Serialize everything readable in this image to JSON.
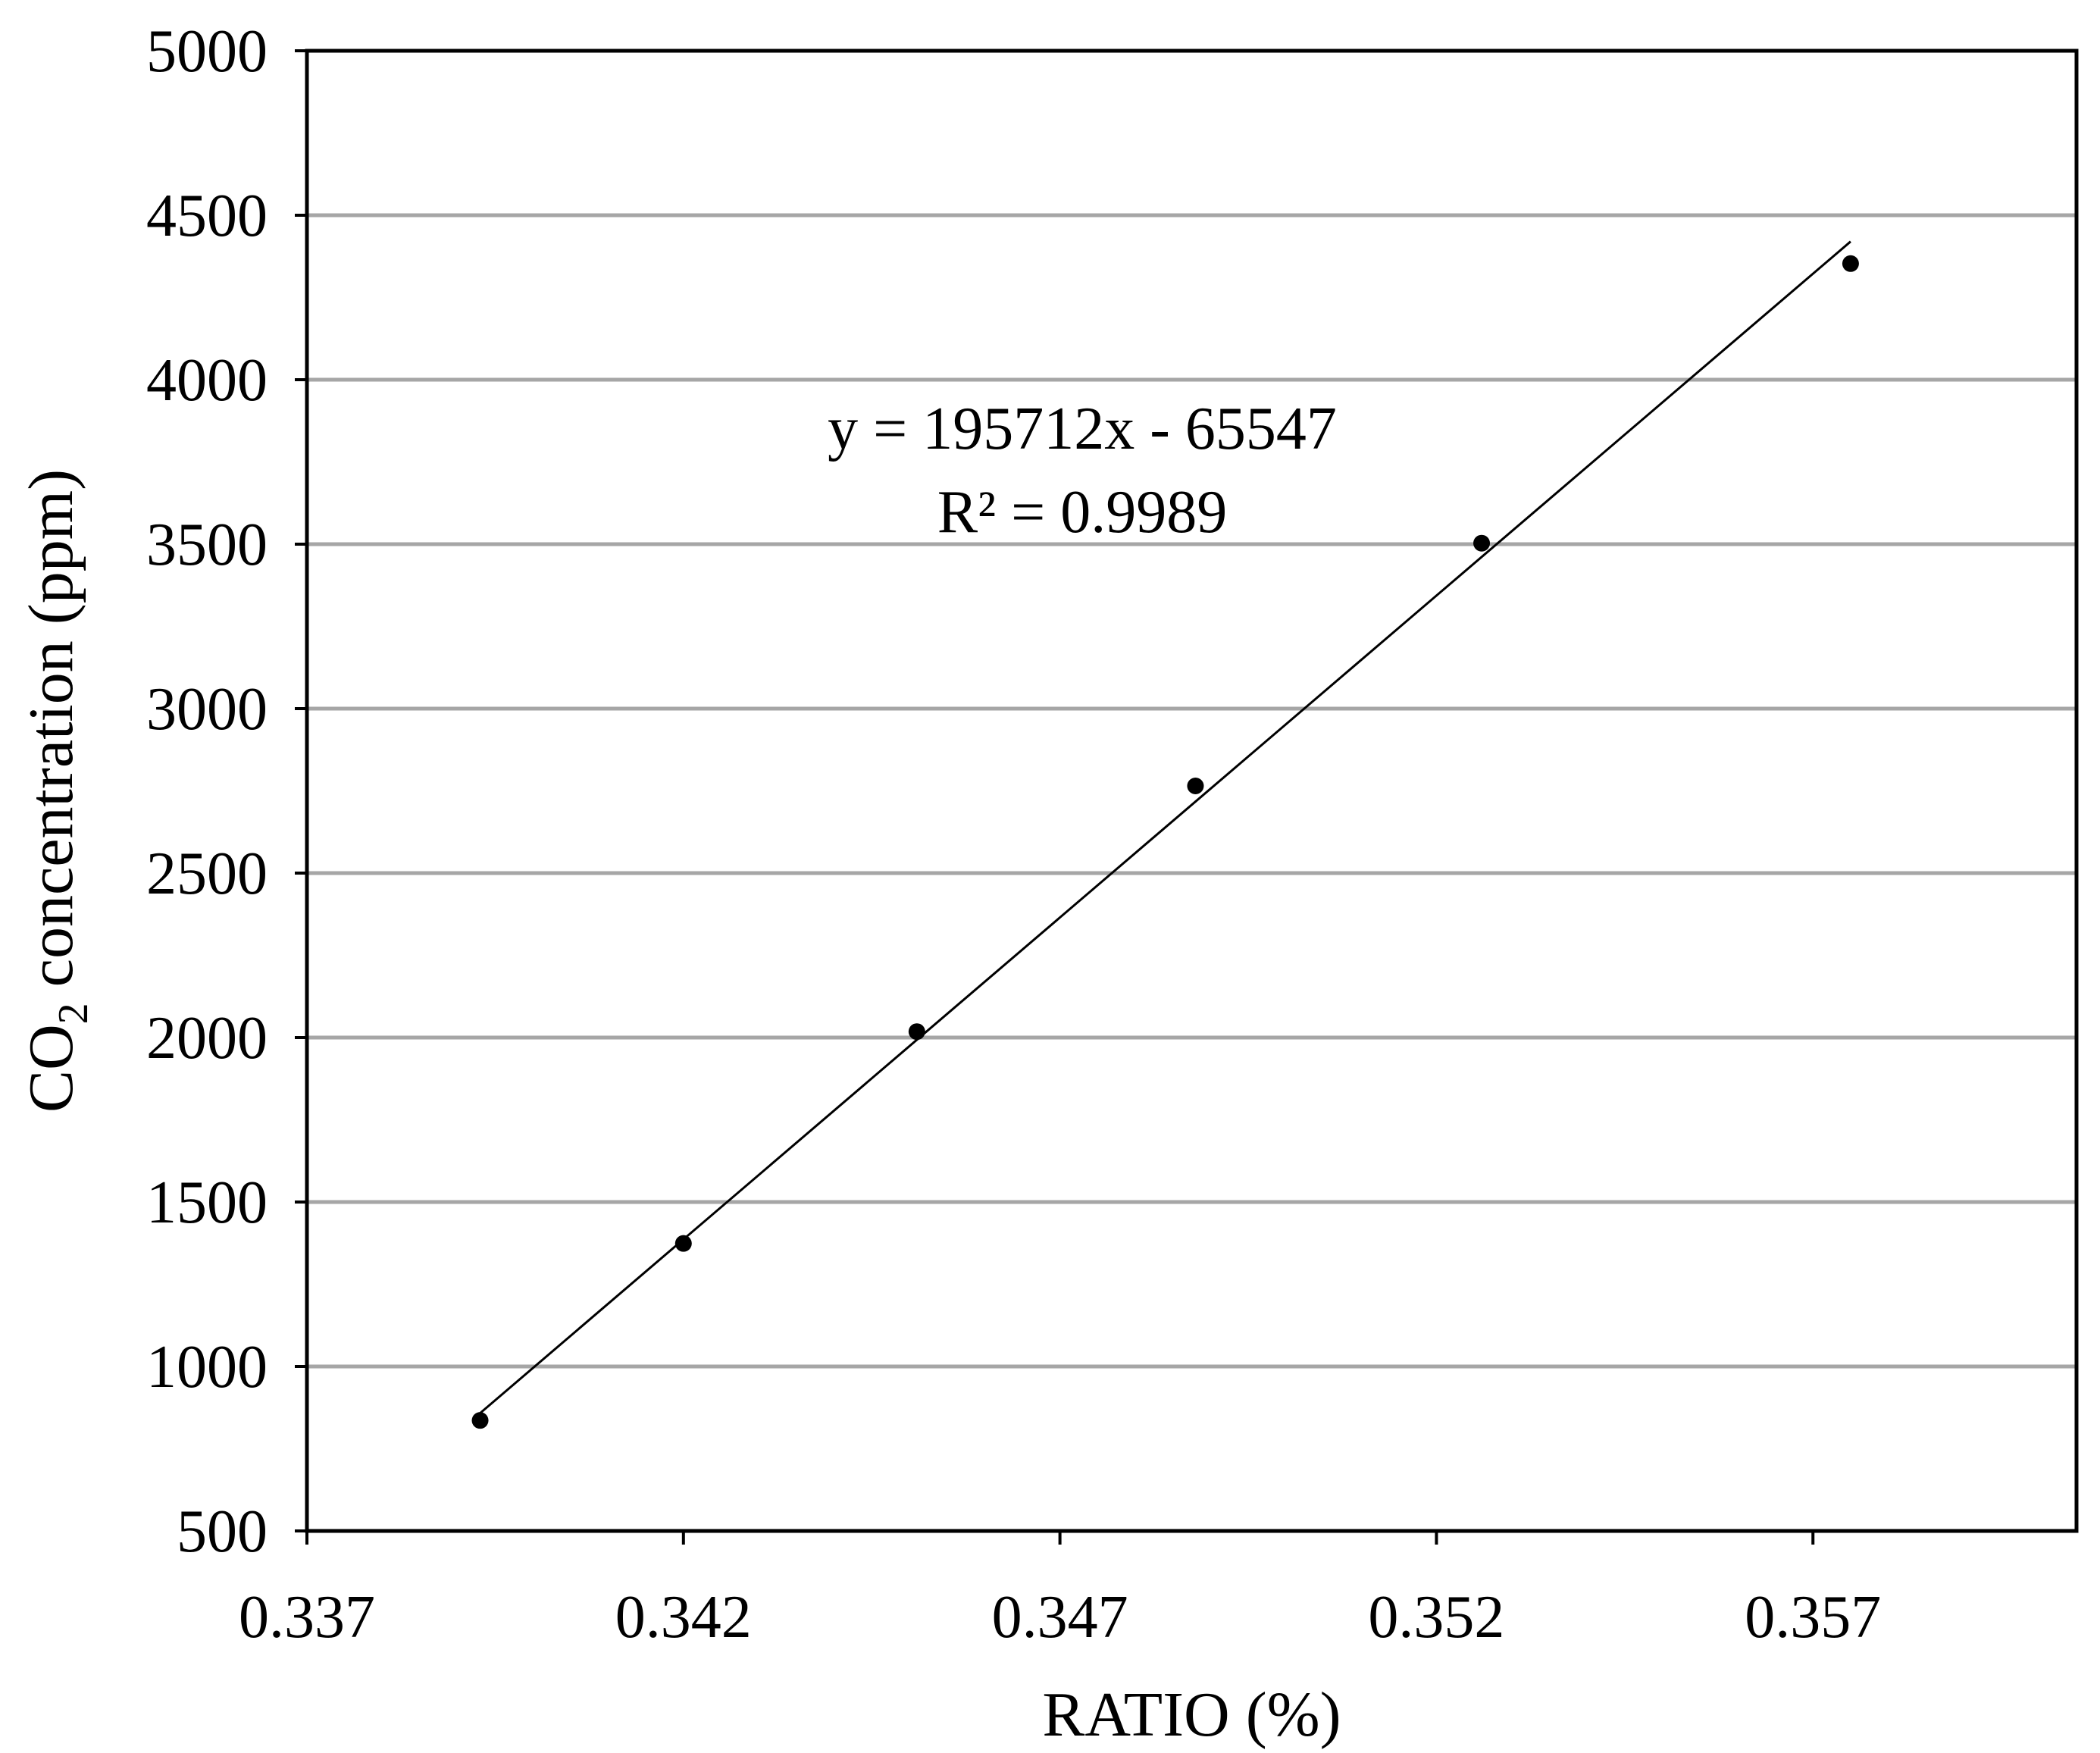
{
  "chart_data": {
    "type": "scatter",
    "title": "",
    "xlabel": "RATIO (%)",
    "ylabel": {
      "text": "CO",
      "subscript": "2",
      "suffix": " concentration (ppm)"
    },
    "xlim": [
      0.337,
      0.3605
    ],
    "ylim": [
      500,
      5000
    ],
    "x_ticks": [
      {
        "value": 0.337,
        "label": "0.337"
      },
      {
        "value": 0.342,
        "label": "0.342"
      },
      {
        "value": 0.347,
        "label": "0.347"
      },
      {
        "value": 0.352,
        "label": "0.352"
      },
      {
        "value": 0.357,
        "label": "0.357"
      }
    ],
    "y_ticks": [
      {
        "value": 500,
        "label": "500"
      },
      {
        "value": 1000,
        "label": "1000"
      },
      {
        "value": 1500,
        "label": "1500"
      },
      {
        "value": 2000,
        "label": "2000"
      },
      {
        "value": 2500,
        "label": "2500"
      },
      {
        "value": 3000,
        "label": "3000"
      },
      {
        "value": 3500,
        "label": "3500"
      },
      {
        "value": 4000,
        "label": "4000"
      },
      {
        "value": 4500,
        "label": "4500"
      },
      {
        "value": 5000,
        "label": "5000"
      }
    ],
    "grid": {
      "horizontal": true,
      "vertical": false
    },
    "series": [
      {
        "points": [
          {
            "x": 0.3393,
            "y": 836
          },
          {
            "x": 0.342,
            "y": 1374
          },
          {
            "x": 0.3451,
            "y": 2018
          },
          {
            "x": 0.3488,
            "y": 2765
          },
          {
            "x": 0.3526,
            "y": 3503
          },
          {
            "x": 0.3575,
            "y": 4353
          }
        ]
      }
    ],
    "trendline": {
      "type": "linear",
      "slope": 195712,
      "intercept": -65547,
      "x_range": [
        0.3393,
        0.3575
      ],
      "equation_label": "y = 195712x - 65547",
      "r2_label": "R² = 0.9989"
    }
  }
}
